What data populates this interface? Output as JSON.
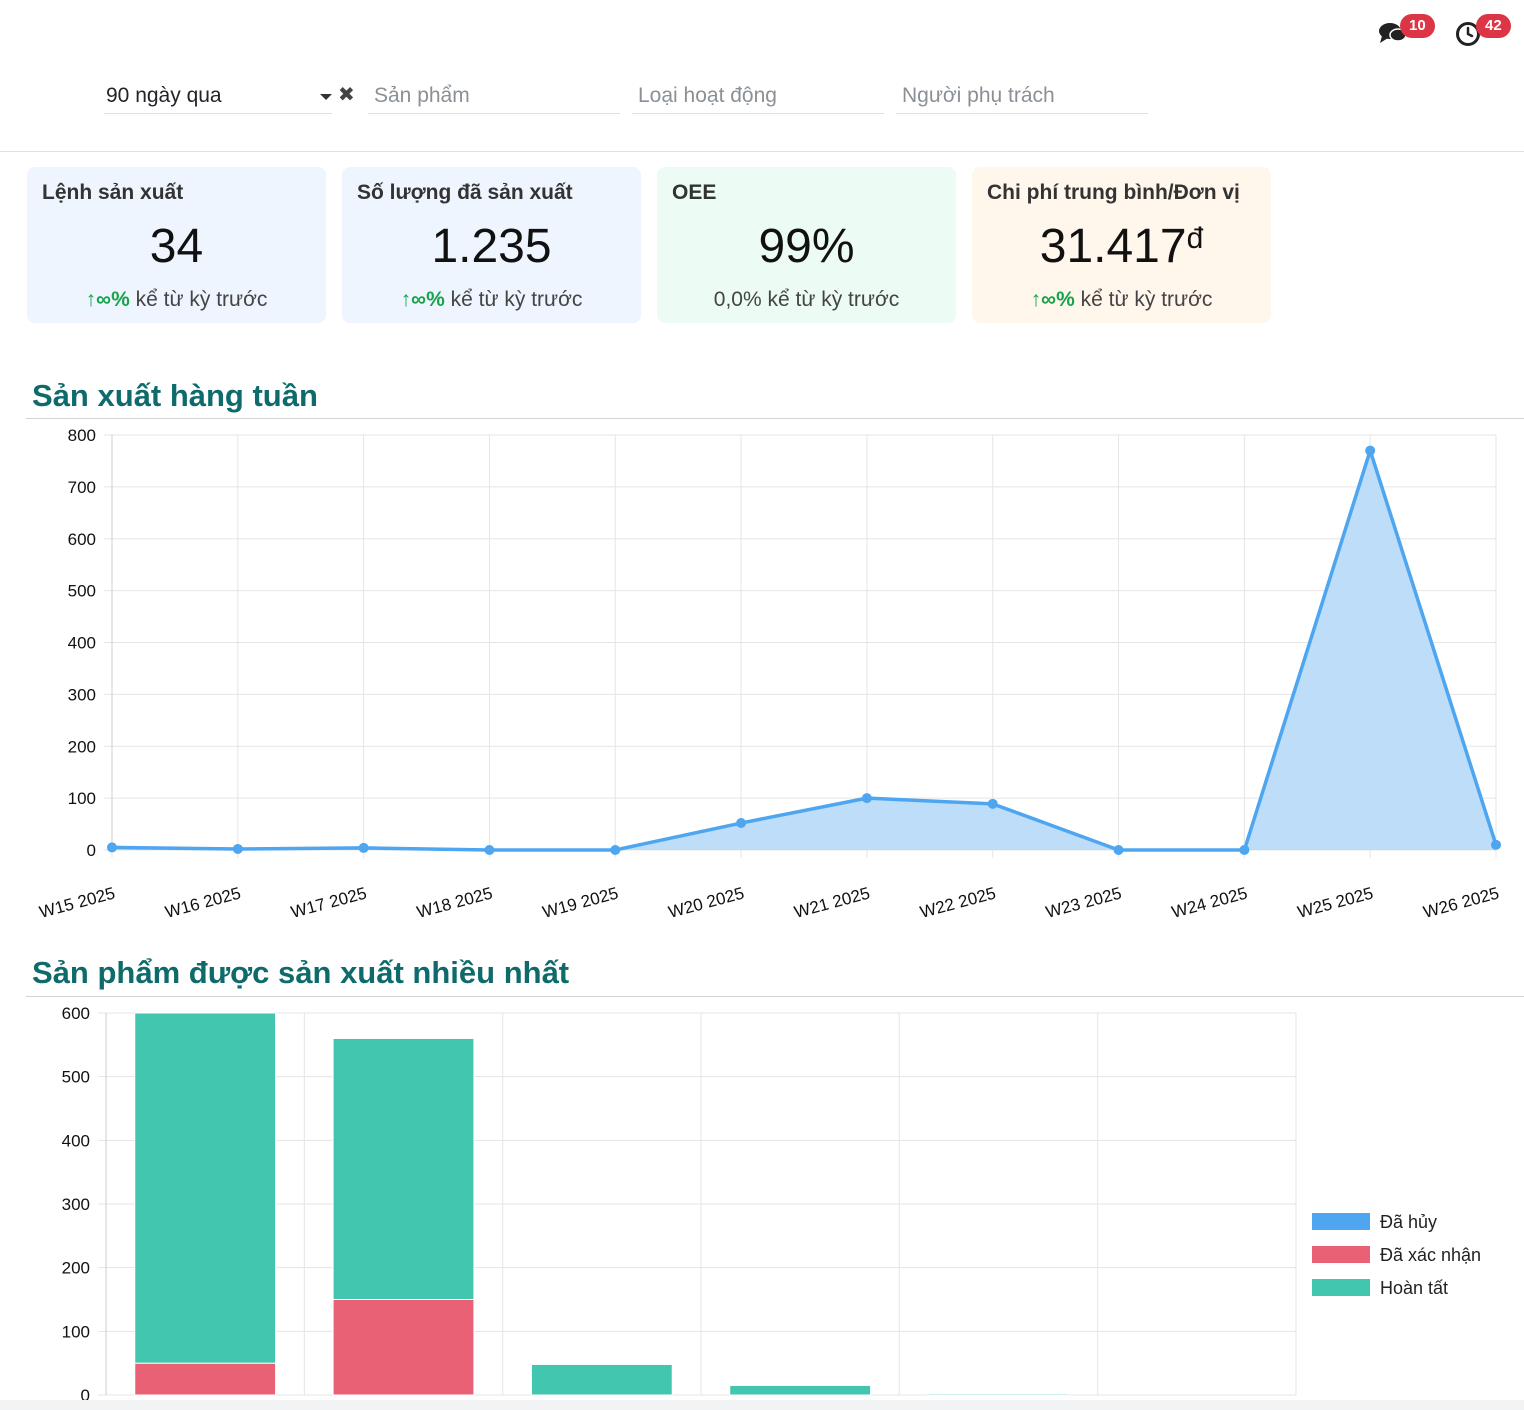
{
  "topbar": {
    "messages_count": "10",
    "activities_count": "42",
    "icons": {
      "messages": "chat-bubbles-icon",
      "activities": "clock-icon"
    }
  },
  "filters": {
    "period": {
      "value": "90 ngày qua"
    },
    "product": {
      "placeholder": "Sản phẩm"
    },
    "operation_type": {
      "placeholder": "Loại hoạt động"
    },
    "responsible": {
      "placeholder": "Người phụ trách"
    },
    "clear_symbol": "✖"
  },
  "kpis": [
    {
      "label": "Lệnh sản xuất",
      "value": "34",
      "trend_arrow": "↑∞%",
      "trend_text": " kể từ kỳ trước",
      "bg": "#eef5ff"
    },
    {
      "label": "Số lượng đã sản xuất",
      "value": "1.235",
      "trend_arrow": "↑∞%",
      "trend_text": " kể từ kỳ trước",
      "bg": "#eef5ff"
    },
    {
      "label": "OEE",
      "value": "99%",
      "trend_arrow": "",
      "trend_text": "0,0% kể từ kỳ trước",
      "bg": "#ecfbf3"
    },
    {
      "label": "Chi phí trung bình/Đơn vị",
      "value": "31.417",
      "currency": "đ",
      "trend_arrow": "↑∞%",
      "trend_text": " kể từ kỳ trước",
      "bg": "#fff6ec"
    }
  ],
  "weekly": {
    "title": "Sản xuất hàng tuần",
    "chart_data": {
      "type": "area",
      "categories": [
        "W15 2025",
        "W16 2025",
        "W17 2025",
        "W18 2025",
        "W19 2025",
        "W20 2025",
        "W21 2025",
        "W22 2025",
        "W23 2025",
        "W24 2025",
        "W25 2025",
        "W26 2025"
      ],
      "values": [
        5,
        2,
        4,
        0,
        0,
        52,
        100,
        89,
        0,
        0,
        770,
        10
      ],
      "ylim": [
        0,
        800
      ],
      "yticks": [
        0,
        100,
        200,
        300,
        400,
        500,
        600,
        700,
        800
      ],
      "grid": true,
      "line_color": "#4ea5f0",
      "fill_color": "#b9dbf8"
    }
  },
  "top_products": {
    "title": "Sản phẩm được sản xuất nhiều nhất",
    "chart_data": {
      "type": "bar",
      "stacked": true,
      "ylim": [
        0,
        600
      ],
      "yticks": [
        0,
        100,
        200,
        300,
        400,
        500,
        600
      ],
      "grid": true,
      "legend_position": "right",
      "series": [
        {
          "name": "Đã hủy",
          "color": "#4ea5f0",
          "values": [
            0,
            0,
            0,
            0,
            0,
            0
          ]
        },
        {
          "name": "Đã xác nhận",
          "color": "#e96174",
          "values": [
            50,
            150,
            0,
            0,
            0,
            0
          ]
        },
        {
          "name": "Hoàn tất",
          "color": "#43c6b0",
          "values": [
            550,
            410,
            48,
            15,
            2,
            0
          ]
        }
      ]
    }
  }
}
